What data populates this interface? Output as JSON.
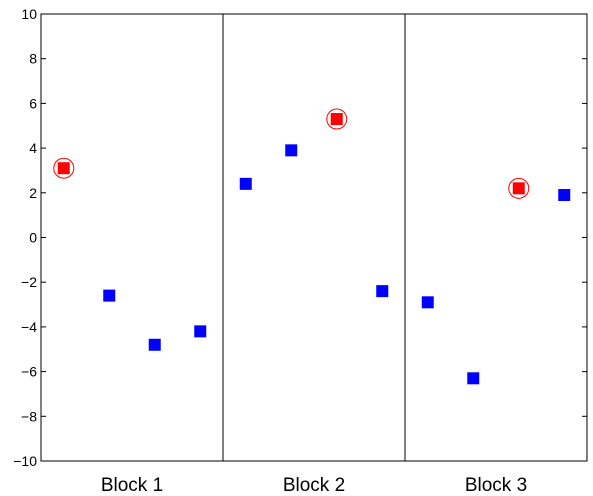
{
  "chart_data": {
    "type": "scatter",
    "ylim": [
      -10,
      10
    ],
    "yticks": [
      -10,
      -8,
      -6,
      -4,
      -2,
      0,
      2,
      4,
      6,
      8,
      10
    ],
    "ytick_labels": [
      "−10",
      "−8",
      "−6",
      "−4",
      "−2",
      "0",
      "2",
      "4",
      "6",
      "8",
      "10"
    ],
    "grid": false,
    "blocks": [
      {
        "label": "Block 1",
        "points": [
          {
            "y": 3.1,
            "highlighted": true
          },
          {
            "y": -2.6,
            "highlighted": false
          },
          {
            "y": -4.8,
            "highlighted": false
          },
          {
            "y": -4.2,
            "highlighted": false
          }
        ]
      },
      {
        "label": "Block 2",
        "points": [
          {
            "y": 2.4,
            "highlighted": false
          },
          {
            "y": 3.9,
            "highlighted": false
          },
          {
            "y": 5.3,
            "highlighted": true
          },
          {
            "y": -2.4,
            "highlighted": false
          }
        ]
      },
      {
        "label": "Block 3",
        "points": [
          {
            "y": -2.9,
            "highlighted": false
          },
          {
            "y": -6.3,
            "highlighted": false
          },
          {
            "y": 2.2,
            "highlighted": true
          },
          {
            "y": 1.9,
            "highlighted": false
          }
        ]
      }
    ],
    "colors": {
      "point": "#0000ff",
      "highlight": "#ff0000"
    }
  }
}
